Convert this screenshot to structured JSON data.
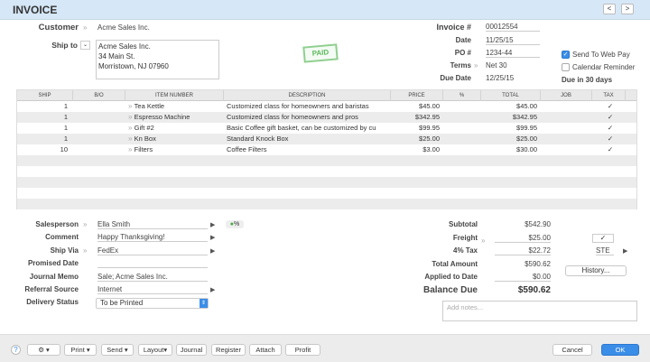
{
  "window": {
    "title": "INVOICE",
    "prev": "<",
    "next": ">"
  },
  "customer": {
    "label": "Customer",
    "value": "Acme Sales Inc."
  },
  "ship_to": {
    "label": "Ship to",
    "lines": [
      "Acme Sales Inc.",
      "34 Main St.",
      "Morristown, NJ 07960"
    ]
  },
  "stamp": "PAID",
  "header_fields": [
    {
      "label": "Invoice #",
      "value": "00012554"
    },
    {
      "label": "Date",
      "value": "11/25/15"
    },
    {
      "label": "PO #",
      "value": "1234-44"
    },
    {
      "label": "Terms",
      "value": "Net 30"
    },
    {
      "label": "Due Date",
      "value": "12/25/15"
    }
  ],
  "options": {
    "send_web_pay": {
      "label": "Send To Web Pay",
      "checked": true
    },
    "calendar_reminder": {
      "label": "Calendar Reminder",
      "checked": false
    },
    "due_note": "Due in 30 days"
  },
  "table": {
    "columns": [
      "SHIP",
      "B/O",
      "ITEM NUMBER",
      "DESCRIPTION",
      "PRICE",
      "%",
      "TOTAL",
      "JOB",
      "TAX"
    ],
    "rows": [
      {
        "ship": "1",
        "bo": "",
        "item": "Tea Kettle",
        "desc": "Customized class for homeowners and baristas",
        "price": "$45.00",
        "pct": "",
        "total": "$45.00",
        "job": "",
        "tax": "✓"
      },
      {
        "ship": "1",
        "bo": "",
        "item": "Espresso Machine",
        "desc": "Customized class for homeowners and pros",
        "price": "$342.95",
        "pct": "",
        "total": "$342.95",
        "job": "",
        "tax": "✓"
      },
      {
        "ship": "1",
        "bo": "",
        "item": "Gift #2",
        "desc": "Basic Coffee gift basket, can be customized by cu",
        "price": "$99.95",
        "pct": "",
        "total": "$99.95",
        "job": "",
        "tax": "✓"
      },
      {
        "ship": "1",
        "bo": "",
        "item": "Kn Box",
        "desc": "Standard Knock Box",
        "price": "$25.00",
        "pct": "",
        "total": "$25.00",
        "job": "",
        "tax": "✓"
      },
      {
        "ship": "10",
        "bo": "",
        "item": "Filters",
        "desc": "Coffee Filters",
        "price": "$3.00",
        "pct": "",
        "total": "$30.00",
        "job": "",
        "tax": "✓"
      }
    ]
  },
  "lower_fields": [
    {
      "label": "Salesperson",
      "value": "Ella Smith"
    },
    {
      "label": "Comment",
      "value": "Happy Thanksgiving!"
    },
    {
      "label": "Ship Via",
      "value": "FedEx"
    },
    {
      "label": "Promised Date",
      "value": ""
    },
    {
      "label": "Journal Memo",
      "value": "Sale; Acme Sales Inc."
    },
    {
      "label": "Referral Source",
      "value": "Internet"
    },
    {
      "label": "Delivery Status",
      "value": "To be Printed"
    }
  ],
  "commission_badge": "%",
  "totals": {
    "subtotal": {
      "label": "Subtotal",
      "value": "$542.90"
    },
    "freight": {
      "label": "Freight",
      "value": "$25.00"
    },
    "tax": {
      "label": "4% Tax",
      "value": "$22.72"
    },
    "total": {
      "label": "Total Amount",
      "value": "$590.62"
    },
    "applied": {
      "label": "Applied to Date",
      "value": "$0.00"
    },
    "balance": {
      "label": "Balance Due",
      "value": "$590.62"
    }
  },
  "freight_tax_check": "✓",
  "tax_code": "STE",
  "history_button": "History...",
  "notes_placeholder": "Add notes...",
  "footer": {
    "help": "?",
    "gear": "⚙",
    "print": "Print",
    "send": "Send",
    "layout": "Layout",
    "journal": "Journal",
    "register": "Register",
    "attach": "Attach",
    "profit": "Profit",
    "cancel": "Cancel",
    "ok": "OK"
  }
}
